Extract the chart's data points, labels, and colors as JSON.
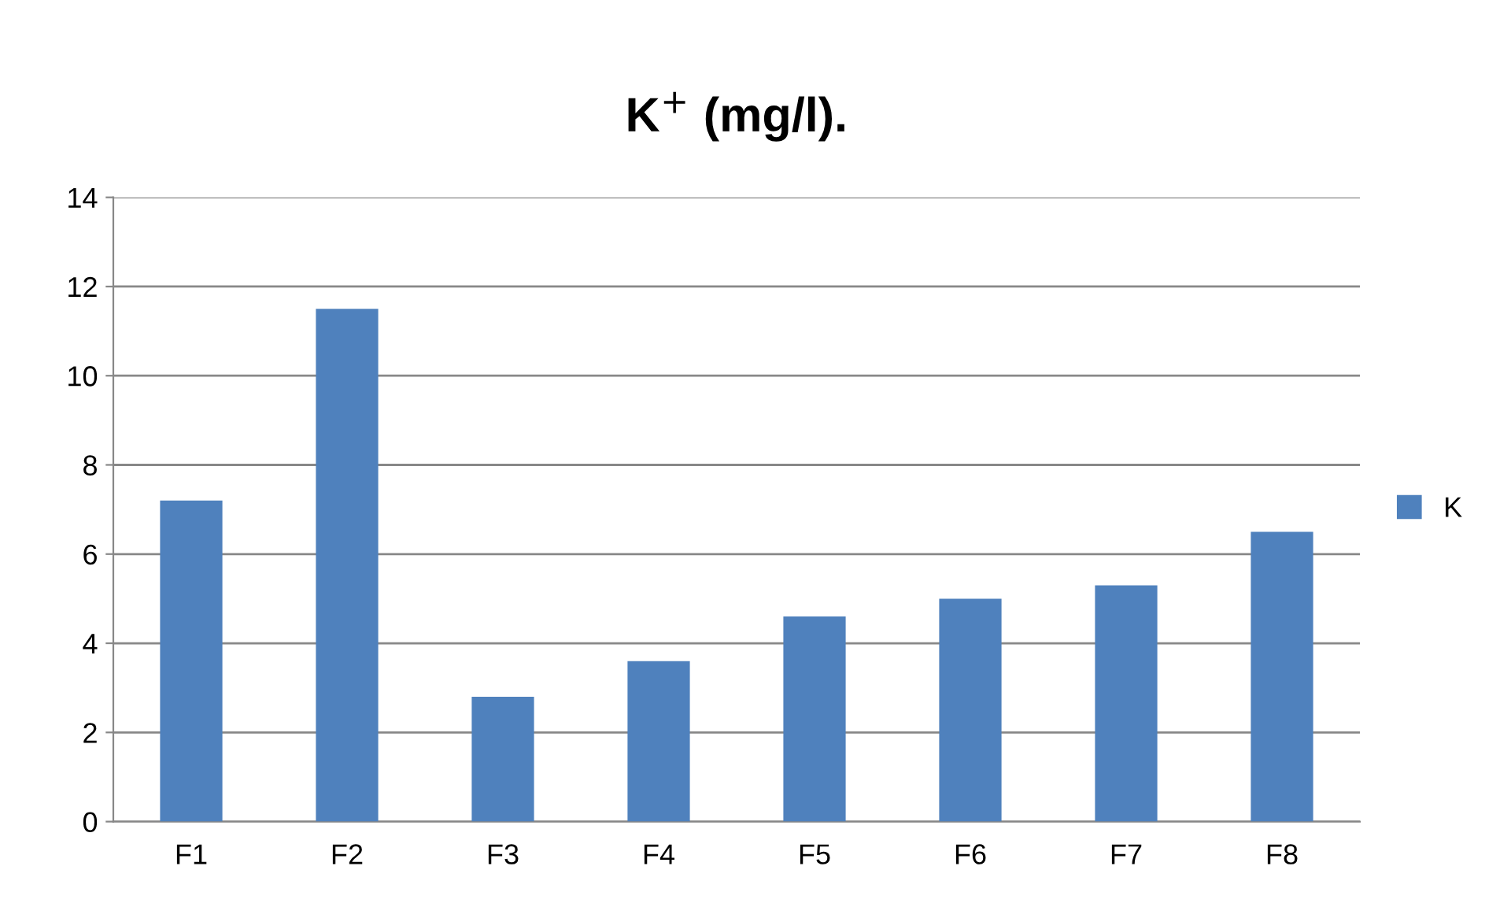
{
  "chart_data": {
    "type": "bar",
    "title": "K$^{+}$ (mg/l).",
    "categories": [
      "F1",
      "F2",
      "F3",
      "F4",
      "F5",
      "F6",
      "F7",
      "F8"
    ],
    "series": [
      {
        "name": "K",
        "color": "#4f81bd",
        "values": [
          7.2,
          11.5,
          2.8,
          3.6,
          4.6,
          5.0,
          5.3,
          6.5
        ]
      }
    ],
    "ylim": [
      0,
      14
    ],
    "yticks": [
      0,
      2,
      4,
      6,
      8,
      10,
      12,
      14
    ],
    "grid": "y",
    "legend": "right"
  }
}
